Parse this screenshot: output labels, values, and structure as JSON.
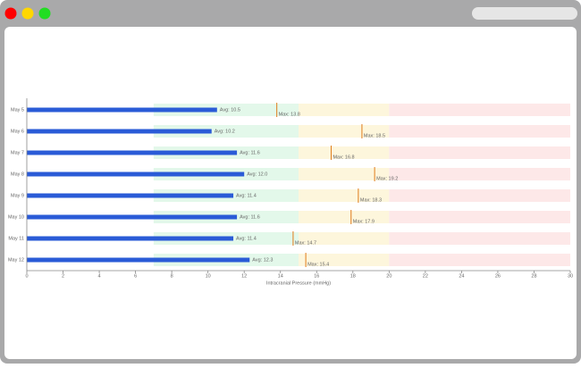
{
  "chart_data": {
    "type": "bullet",
    "x_label": "Intracranial Pressure (mmHg)",
    "categories": [
      "May 5",
      "May 6",
      "May 7",
      "May 8",
      "May 9",
      "May 10",
      "May 11",
      "May 12"
    ],
    "series": [
      {
        "color": "#2a5bd7",
        "values": [
          10.5,
          10.2,
          11.6,
          12.0,
          11.4,
          11.6,
          11.4,
          12.3
        ],
        "value_labels": [
          "Avg: 10.5",
          "Avg: 10.2",
          "Avg: 11.6",
          "Avg: 12.0",
          "Avg: 11.4",
          "Avg: 11.6",
          "Avg: 11.4",
          "Avg: 12.3"
        ]
      },
      {
        "color": "#e07b1a",
        "values": [
          13.8,
          18.5,
          16.8,
          19.2,
          18.3,
          17.9,
          14.7,
          15.4
        ],
        "value_labels": [
          "Max: 13.8",
          "Max: 18.5",
          "Max: 16.8",
          "Max: 19.2",
          "Max: 18.3",
          "Max: 17.9",
          "Max: 14.7",
          "Max: 15.4"
        ]
      }
    ],
    "bands": [
      {
        "from": 7,
        "to": 15,
        "color": "#e3f8ea"
      },
      {
        "from": 15,
        "to": 20,
        "color": "#fdf6dc"
      },
      {
        "from": 20,
        "to": 30,
        "color": "#fde8e8"
      }
    ],
    "xlim": [
      0,
      30
    ],
    "xticks": [
      0,
      2,
      4,
      6,
      8,
      10,
      12,
      14,
      16,
      18,
      20,
      22,
      24,
      26,
      28,
      30
    ]
  }
}
